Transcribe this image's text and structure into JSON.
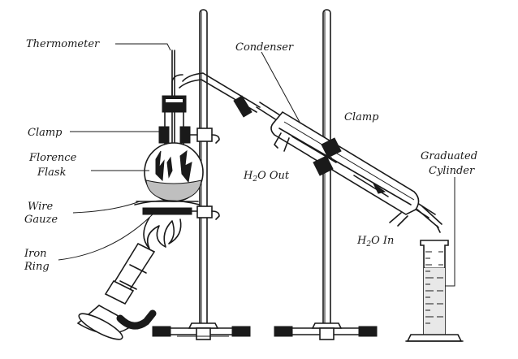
{
  "labels": {
    "thermometer": "Thermometer",
    "condenser": "Condenser",
    "clamp_left": "Clamp",
    "clamp_right": "Clamp",
    "florence": "Florence",
    "flask": "Flask",
    "h2o_out_h": "H",
    "h2o_out_sub": "2",
    "h2o_out_rest": "O Out",
    "graduated": "Graduated",
    "cylinder": "Cylinder",
    "wire": "Wire",
    "gauze": "Gauze",
    "h2o_in_h": "H",
    "h2o_in_sub": "2",
    "h2o_in_rest": "O In",
    "iron": "Iron",
    "ring": "Ring"
  }
}
